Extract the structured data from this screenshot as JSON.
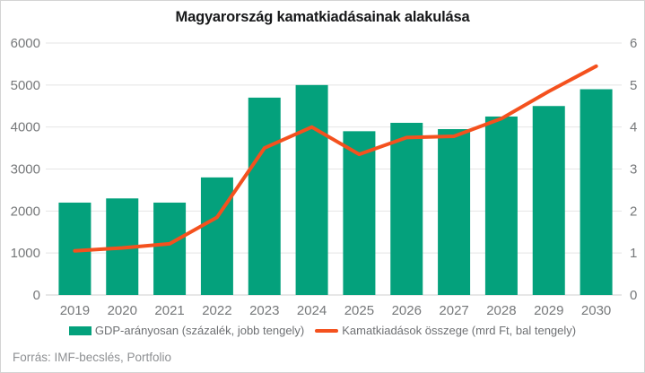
{
  "source": "Forrás: IMF-becslés, Portfolio",
  "colors": {
    "bar": "#04a17c",
    "line": "#f4511e",
    "grid": "#e4e4e4",
    "baseline": "#cfcfcf",
    "axis_text": "#76787a",
    "title_text": "#17181a",
    "legend_text": "#6e7073",
    "source_text": "#8e9093"
  },
  "chart_data": {
    "type": "combo_bar_line",
    "title": "Magyarország kamatkiadásainak alakulása",
    "categories": [
      "2019",
      "2020",
      "2021",
      "2022",
      "2023",
      "2024",
      "2025",
      "2026",
      "2027",
      "2028",
      "2029",
      "2030"
    ],
    "series": [
      {
        "name": "GDP-arányosan (százalék, jobb tengely)",
        "type": "bar",
        "axis": "right",
        "unit": "percent of GDP",
        "values": [
          2.2,
          2.3,
          2.2,
          2.8,
          4.7,
          5.0,
          3.9,
          4.1,
          3.95,
          4.25,
          4.5,
          4.9
        ]
      },
      {
        "name": "Kamatkiadások összege (mrd Ft, bal tengely)",
        "type": "line",
        "axis": "left",
        "unit": "mrd Ft",
        "values": [
          1050,
          1120,
          1220,
          1850,
          3500,
          4000,
          3350,
          3750,
          3780,
          4200,
          4850,
          5450
        ]
      }
    ],
    "left_axis": {
      "min": 0,
      "max": 6000,
      "ticks": [
        0,
        1000,
        2000,
        3000,
        4000,
        5000,
        6000
      ]
    },
    "right_axis": {
      "min": 0,
      "max": 6,
      "ticks": [
        0,
        1,
        2,
        3,
        4,
        5,
        6
      ]
    },
    "grid": true,
    "legend_position": "bottom"
  }
}
